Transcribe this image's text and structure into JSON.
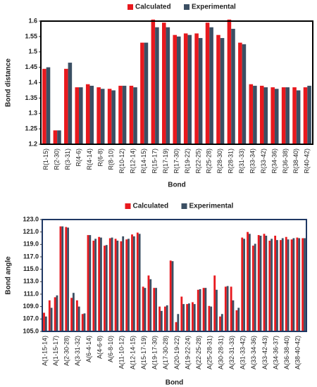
{
  "chart_data": [
    {
      "type": "bar",
      "xlabel": "Bond",
      "ylabel": "Bond distance",
      "categories": [
        "R(1-15)",
        "R(2-30)",
        "R(3-31)",
        "R(4-6)",
        "R(4-14)",
        "R(6-8)",
        "R(8-10)",
        "R(10-12)",
        "R(12-14)",
        "R(14-15)",
        "R(15-17)",
        "R(17-19)",
        "R(17-30)",
        "R(19-22)",
        "R(22-25)",
        "R(25-28)",
        "R(28-30)",
        "R(28-31)",
        "R(31-33)",
        "R(33-34)",
        "R(33-42)",
        "R(34-36)",
        "R(36-38)",
        "R(38-40)",
        "R(40-42)"
      ],
      "series": [
        {
          "name": "Calculated",
          "color": "#e8191e",
          "values": [
            1.445,
            1.245,
            1.445,
            1.385,
            1.395,
            1.385,
            1.38,
            1.39,
            1.39,
            1.53,
            1.605,
            1.595,
            1.555,
            1.56,
            1.56,
            1.595,
            1.555,
            1.605,
            1.53,
            1.395,
            1.39,
            1.385,
            1.385,
            1.385,
            1.385
          ]
        },
        {
          "name": "Experimental",
          "color": "#3b4f63",
          "values": [
            1.45,
            1.245,
            1.465,
            1.385,
            1.39,
            1.38,
            1.375,
            1.39,
            1.385,
            1.53,
            1.58,
            1.58,
            1.55,
            1.555,
            1.545,
            1.58,
            1.545,
            1.575,
            1.525,
            1.39,
            1.385,
            1.38,
            1.385,
            1.375,
            1.39
          ]
        }
      ],
      "ylim": [
        1.2,
        1.6
      ],
      "yticks": [
        1.2,
        1.25,
        1.3,
        1.35,
        1.4,
        1.45,
        1.5,
        1.55,
        1.6
      ],
      "frame": "#000000"
    },
    {
      "type": "bar",
      "xlabel": "Bond",
      "ylabel": "Bond angle",
      "categories": [
        "A(1-15-14)",
        null,
        "A(1-15-17)",
        null,
        "A(2-30-28)",
        null,
        "A(3-31-32)",
        null,
        "A(6-4-14)",
        null,
        "A(4-6-8)",
        null,
        "A(6-8-10)",
        null,
        "A(11-10-12)",
        null,
        "A(12-14-15)",
        null,
        "A(15-17-19)",
        null,
        "A(19-17-30)",
        null,
        "A(17-30-28)",
        null,
        "A(20-19-22)",
        null,
        "A(19-22-24)",
        null,
        "A(22-25-28)",
        null,
        "A(25-28-31)",
        null,
        "A(30-28-31)",
        null,
        "A(32-31-33)",
        null,
        "A(31-33-42)",
        null,
        "A(33-34-36)",
        null,
        "A(33-42-43)",
        null,
        "A(34-36-37)",
        null,
        "A(36-38-40)",
        null,
        "A(38-40-42)",
        null
      ],
      "series": [
        {
          "name": "Calculated",
          "color": "#e8191e",
          "values": [
            108.0,
            110.0,
            110.5,
            121.9,
            121.8,
            110.4,
            110.0,
            107.8,
            120.5,
            119.6,
            120.2,
            118.8,
            120.0,
            119.9,
            119.5,
            119.8,
            120.6,
            120.9,
            112.2,
            114.0,
            112.0,
            109.0,
            109.0,
            116.4,
            106.5,
            110.6,
            109.4,
            109.7,
            111.7,
            112.0,
            109.1,
            114.0,
            107.4,
            112.2,
            112.2,
            108.4,
            120.1,
            121.0,
            118.8,
            120.5,
            120.7,
            119.6,
            120.4,
            119.7,
            120.2,
            119.8,
            120.1,
            120.0
          ]
        },
        {
          "name": "Experimental",
          "color": "#3b4f63",
          "values": [
            107.4,
            108.8,
            110.8,
            121.9,
            121.7,
            111.2,
            109.0,
            107.9,
            120.5,
            119.9,
            120.1,
            118.9,
            120.1,
            119.6,
            120.3,
            119.9,
            120.3,
            120.7,
            112.0,
            113.4,
            112.0,
            108.3,
            109.2,
            116.3,
            107.8,
            109.4,
            109.5,
            109.4,
            111.8,
            112.0,
            109.0,
            111.7,
            107.8,
            112.3,
            110.0,
            108.8,
            119.9,
            120.7,
            119.1,
            120.4,
            120.4,
            119.9,
            119.7,
            120.0,
            119.8,
            120.0,
            120.0,
            120.0
          ]
        }
      ],
      "ylim": [
        105,
        123
      ],
      "yticks": [
        {
          "value": 105,
          "label": "105.0"
        },
        {
          "value": 107,
          "label": "107.0"
        },
        {
          "value": 109,
          "label": "109.0"
        },
        {
          "value": 111,
          "label": "111.0"
        },
        {
          "value": 113,
          "label": "113.0"
        },
        {
          "value": 115,
          "label": "115.0"
        },
        {
          "value": 117,
          "label": "117.0"
        },
        {
          "value": 119,
          "label": "119.0"
        },
        {
          "value": 121,
          "label": "121.0"
        },
        {
          "value": 123,
          "label": "123.0"
        }
      ],
      "frame": "#1f3864"
    }
  ]
}
